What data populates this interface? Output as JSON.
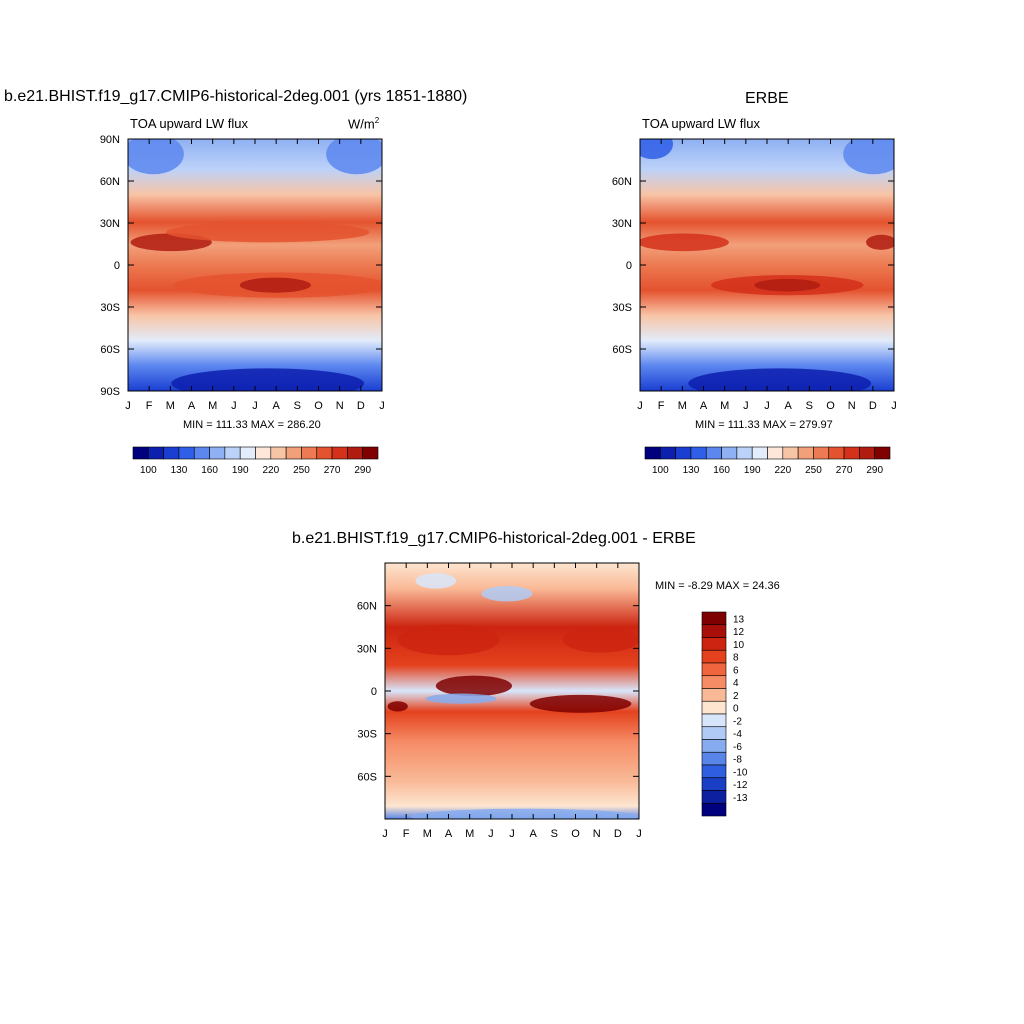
{
  "panels": {
    "model": {
      "title": "b.e21.BHIST.f19_g17.CMIP6-historical-2deg.001 (yrs 1851-1880)",
      "variable": "TOA upward LW flux",
      "units": "W/m",
      "units_sup": "2",
      "stats": "MIN = 111.33 MAX = 286.20"
    },
    "obs": {
      "title": "ERBE",
      "variable": "TOA upward LW flux",
      "stats": "MIN = 111.33 MAX = 279.97"
    },
    "diff": {
      "title": "b.e21.BHIST.f19_g17.CMIP6-historical-2deg.001 - ERBE",
      "stats": "MIN =  -8.29 MAX =  24.36"
    }
  },
  "axes": {
    "months": [
      "J",
      "F",
      "M",
      "A",
      "M",
      "J",
      "J",
      "A",
      "S",
      "O",
      "N",
      "D",
      "J"
    ],
    "lat_full": [
      "90N",
      "60N",
      "30N",
      "0",
      "30S",
      "60S",
      "90S"
    ],
    "lat_short": [
      "60N",
      "30N",
      "0",
      "30S",
      "60S"
    ]
  },
  "colorbars": {
    "main_labels": [
      "100",
      "130",
      "160",
      "190",
      "220",
      "250",
      "270",
      "290"
    ],
    "main_colors": [
      "#00007f",
      "#0d1fae",
      "#1a3ed1",
      "#2f5ee8",
      "#5c87ef",
      "#8fb0f3",
      "#bcd2f8",
      "#e2ecfb",
      "#fde7d8",
      "#f8c4a6",
      "#f2a07a",
      "#ec7a52",
      "#e4522e",
      "#d4301a",
      "#b01c10",
      "#800000"
    ],
    "diff_labels": [
      "13",
      "12",
      "10",
      "8",
      "6",
      "4",
      "2",
      "0",
      "-2",
      "-4",
      "-6",
      "-8",
      "-10",
      "-12",
      "-13"
    ],
    "diff_colors": [
      "#7f0000",
      "#a80f0a",
      "#cc2410",
      "#e4421e",
      "#f0643e",
      "#f58c66",
      "#f9b996",
      "#fde5d0",
      "#d8e6fb",
      "#b0cbf5",
      "#86abee",
      "#5a85e8",
      "#2f5fe0",
      "#1a3ec4",
      "#0d20a0",
      "#00007f"
    ]
  },
  "chart_data": [
    {
      "type": "heatmap",
      "title": "b.e21.BHIST.f19_g17.CMIP6-historical-2deg.001 (yrs 1851-1880)",
      "subtitle": "TOA upward LW flux",
      "units": "W/m2",
      "x": [
        "J",
        "F",
        "M",
        "A",
        "M",
        "J",
        "J",
        "A",
        "S",
        "O",
        "N",
        "D",
        "J"
      ],
      "y": [
        "90N",
        "60N",
        "30N",
        "0",
        "30S",
        "60S",
        "90S"
      ],
      "ylim": [
        -90,
        90
      ],
      "min": 111.33,
      "max": 286.2,
      "levels": [
        100,
        130,
        160,
        190,
        220,
        250,
        270,
        290
      ]
    },
    {
      "type": "heatmap",
      "title": "ERBE",
      "subtitle": "TOA upward LW flux",
      "x": [
        "J",
        "F",
        "M",
        "A",
        "M",
        "J",
        "J",
        "A",
        "S",
        "O",
        "N",
        "D",
        "J"
      ],
      "y": [
        "60N",
        "30N",
        "0",
        "30S",
        "60S"
      ],
      "ylim": [
        -90,
        90
      ],
      "min": 111.33,
      "max": 279.97,
      "levels": [
        100,
        130,
        160,
        190,
        220,
        250,
        270,
        290
      ]
    },
    {
      "type": "heatmap",
      "title": "b.e21.BHIST.f19_g17.CMIP6-historical-2deg.001 - ERBE",
      "x": [
        "J",
        "F",
        "M",
        "A",
        "M",
        "J",
        "J",
        "A",
        "S",
        "O",
        "N",
        "D",
        "J"
      ],
      "y": [
        "60N",
        "30N",
        "0",
        "30S",
        "60S"
      ],
      "ylim": [
        -90,
        90
      ],
      "min": -8.29,
      "max": 24.36,
      "levels": [
        -13,
        -12,
        -10,
        -8,
        -6,
        -4,
        -2,
        0,
        2,
        4,
        6,
        8,
        10,
        12,
        13
      ]
    }
  ]
}
